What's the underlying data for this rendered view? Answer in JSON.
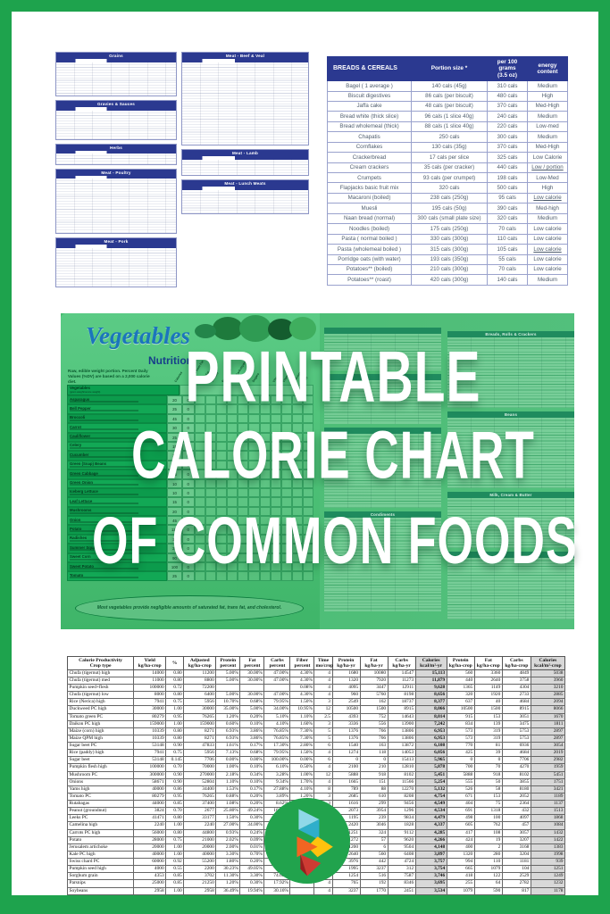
{
  "poster": {
    "frame_color": "#1EA34D"
  },
  "mini_tables": {
    "left": [
      {
        "title": "Grains",
        "rows": 13
      },
      {
        "title": "Gravies & Sauces",
        "rows": 11
      },
      {
        "title": "Herbs",
        "rows": 4
      },
      {
        "title": "Meat - Poultry",
        "rows": 21
      },
      {
        "title": "Meat - Pork",
        "rows": 15
      }
    ],
    "right": [
      {
        "title": "Meat - Beef & Veal",
        "rows": 32
      },
      {
        "title": "Meat - Lamb",
        "rows": 6
      },
      {
        "title": "Meat - Lunch Meats",
        "rows": 9
      }
    ]
  },
  "breads_table": {
    "title": "BREADS & CEREALS",
    "col_portion": "Portion size *",
    "col_per100_line1": "per 100 grams",
    "col_per100_line2": "(3.5 oz)",
    "col_energy": "energy content",
    "rows": [
      {
        "food": "Bagel ( 1 average )",
        "portion": "140 cals (45g)",
        "per100": "310 cals",
        "energy": "Medium",
        "underline": false
      },
      {
        "food": "Biscuit digestives",
        "portion": "86 cals (per biscuit)",
        "per100": "480 cals",
        "energy": "High",
        "underline": false
      },
      {
        "food": "Jaffa cake",
        "portion": "48 cals (per biscuit)",
        "per100": "370 cals",
        "energy": "Med-High",
        "underline": false
      },
      {
        "food": "Bread white (thick slice)",
        "portion": "96 cals (1 slice 40g)",
        "per100": "240 cals",
        "energy": "Medium",
        "underline": false
      },
      {
        "food": "Bread wholemeal (thick)",
        "portion": "88 cals (1 slice 40g)",
        "per100": "220 cals",
        "energy": "Low-med",
        "underline": false
      },
      {
        "food": "Chapatis",
        "portion": "250 cals",
        "per100": "300 cals",
        "energy": "Medium",
        "underline": false
      },
      {
        "food": "Cornflakes",
        "portion": "130 cals (35g)",
        "per100": "370 cals",
        "energy": "Med-High",
        "underline": false
      },
      {
        "food": "Crackerbread",
        "portion": "17 cals per slice",
        "per100": "325 cals",
        "energy": "Low Calorie",
        "underline": false
      },
      {
        "food": "Cream crackers",
        "portion": "35 cals (per cracker)",
        "per100": "440 cals",
        "energy": "Low / portion",
        "underline": true
      },
      {
        "food": "Crumpets",
        "portion": "93 cals (per crumpet)",
        "per100": "198 cals",
        "energy": "Low-Med",
        "underline": false
      },
      {
        "food": "Flapjacks basic fruit mix",
        "portion": "320 cals",
        "per100": "500 cals",
        "energy": "High",
        "underline": false
      },
      {
        "food": "Macaroni (boiled)",
        "portion": "238 cals (250g)",
        "per100": "95 cals",
        "energy": "Low calorie",
        "underline": true
      },
      {
        "food": "Muesli",
        "portion": "195 cals (50g)",
        "per100": "390 cals",
        "energy": "Med-high",
        "underline": false
      },
      {
        "food": "Naan bread (normal)",
        "portion": "300 cals (small plate size)",
        "per100": "320 cals",
        "energy": "Medium",
        "underline": false
      },
      {
        "food": "Noodles (boiled)",
        "portion": "175 cals (250g)",
        "per100": "70 cals",
        "energy": "Low calorie",
        "underline": false
      },
      {
        "food": "Pasta ( normal boiled )",
        "portion": "330 cals (300g)",
        "per100": "110 cals",
        "energy": "Low calorie",
        "underline": false
      },
      {
        "food": "Pasta (wholemeal boiled )",
        "portion": "315 cals (300g)",
        "per100": "105 cals",
        "energy": "Low calorie",
        "underline": true
      },
      {
        "food": "Porridge oats (with water)",
        "portion": "193 cals (350g)",
        "per100": "55 cals",
        "energy": "Low calorie",
        "underline": false
      },
      {
        "food": "Potatoes** (boiled)",
        "portion": "210 cals (300g)",
        "per100": "70 cals",
        "energy": "Low calorie",
        "underline": false
      },
      {
        "food": "Potatoes** (roast)",
        "portion": "420 cals (300g)",
        "per100": "140 cals",
        "energy": "Medium",
        "underline": false
      }
    ]
  },
  "hero": {
    "overlay_lines": [
      "PRINTABLE",
      "CALORIE CHART",
      "OF COMMON FOODS"
    ],
    "veg_panel": {
      "title": "Vegetables",
      "subtitle": "Nutrition",
      "note": "Raw, edible weight portion. Percent Daily Values (%DV) are based on a 2,000 calorie diet.",
      "table_header": "Vegetables",
      "table_header_sub": "(gram weight/ounce weight)",
      "columns": [
        "Calories",
        "Calories from Fat",
        "Total Fat",
        "Sodium",
        "Potassium",
        "Total Carbohydrate",
        "Dietary Fiber",
        "Sugars",
        "Protein",
        "Vitamin A",
        "Vitamin C",
        "Calcium",
        "Iron"
      ],
      "rows": [
        {
          "name": "Asparagus",
          "calories": "20",
          "calories_from_fat": "0"
        },
        {
          "name": "Bell Pepper",
          "calories": "25",
          "calories_from_fat": "0"
        },
        {
          "name": "Broccoli",
          "calories": "45",
          "calories_from_fat": "0"
        },
        {
          "name": "Carrot",
          "calories": "30",
          "calories_from_fat": "0"
        },
        {
          "name": "Cauliflower",
          "calories": "25",
          "calories_from_fat": "0"
        },
        {
          "name": "Celery",
          "calories": "15",
          "calories_from_fat": "0"
        },
        {
          "name": "Cucumber",
          "calories": "10",
          "calories_from_fat": "0"
        },
        {
          "name": "Green (Snap) Beans",
          "calories": "20",
          "calories_from_fat": "0"
        },
        {
          "name": "Green Cabbage",
          "calories": "25",
          "calories_from_fat": "0"
        },
        {
          "name": "Green Onion",
          "calories": "10",
          "calories_from_fat": "0"
        },
        {
          "name": "Iceberg Lettuce",
          "calories": "10",
          "calories_from_fat": "0"
        },
        {
          "name": "Leaf Lettuce",
          "calories": "15",
          "calories_from_fat": "0"
        },
        {
          "name": "Mushrooms",
          "calories": "20",
          "calories_from_fat": "0"
        },
        {
          "name": "Onion",
          "calories": "45",
          "calories_from_fat": "0"
        },
        {
          "name": "Potato",
          "calories": "110",
          "calories_from_fat": "0"
        },
        {
          "name": "Radishes",
          "calories": "10",
          "calories_from_fat": "0"
        },
        {
          "name": "Summer Squash",
          "calories": "20",
          "calories_from_fat": "0"
        },
        {
          "name": "Sweet Corn",
          "calories": "90",
          "calories_from_fat": "20"
        },
        {
          "name": "Sweet Potato",
          "calories": "100",
          "calories_from_fat": "0"
        },
        {
          "name": "Tomato",
          "calories": "25",
          "calories_from_fat": "0"
        }
      ],
      "footnote": "Most vegetables provide negligible amounts of saturated fat, trans fat, and cholesterol."
    },
    "collage": {
      "left_titles": [
        "",
        "",
        "",
        "Condiments"
      ],
      "right_titles": [
        "Breads, Rolls & Crackers",
        "Beans",
        "Milk, Cream & Butter",
        ""
      ]
    }
  },
  "crop_table": {
    "header_line1": [
      "Calorie Productivity",
      "Yield",
      "%",
      "Adjusted",
      "Protein",
      "Fat",
      "Carbs",
      "Fiber",
      "Time",
      "Protein",
      "Fat",
      "Carbs",
      "Calories",
      "Protein",
      "Fat",
      "Carbs",
      "Calories"
    ],
    "header_line2": [
      "Crop type",
      "kg/ha-crop",
      "",
      "kg/ha-crop",
      "percent",
      "percent",
      "percent",
      "percent",
      "mo/crop",
      "kg/ha-yr",
      "kg/ha-yr",
      "kg/ha-yr",
      "kcal/m²-yr",
      "kg/ha-crop",
      "kg/ha-crop",
      "kg/ha-crop",
      "kcal/m²-crop"
    ],
    "rows": [
      [
        "Chufa (tigernut) high",
        "14000",
        "0.80",
        "11200",
        "5.00%",
        "30.00%",
        "47.00%",
        "4.30%",
        "4",
        "1680",
        "10080",
        "14547",
        "15,113",
        "560",
        "3360",
        "4849",
        "5038"
      ],
      [
        "Chufa (tigernut) med",
        "11000",
        "0.80",
        "8800",
        "5.00%",
        "30.00%",
        "47.00%",
        "4.30%",
        "4",
        "1320",
        "7920",
        "11273",
        "11,879",
        "440",
        "2640",
        "3758",
        "3960"
      ],
      [
        "Pumpkin seed+flesh",
        "100000",
        "0.72",
        "72200",
        "",
        "",
        "",
        "0.08%",
        "4",
        "4095",
        "3447",
        "12911",
        "9,628",
        "1365",
        "1149",
        "4304",
        "3210"
      ],
      [
        "Chufa (tigernut) low",
        "8000",
        "0.80",
        "6400",
        "5.00%",
        "30.00%",
        "47.00%",
        "4.30%",
        "4",
        "960",
        "5760",
        "8198",
        "8,656",
        "320",
        "1920",
        "2733",
        "2885"
      ],
      [
        "Rice (Nerica) high",
        "7941",
        "0.75",
        "5956",
        "10.70%",
        "0.68%",
        "79.95%",
        "1.50%",
        "3",
        "2549",
        "162",
        "18737",
        "8,377",
        "637",
        "40",
        "4684",
        "2094"
      ],
      [
        "Duckweed PC high",
        "30000",
        "1.00",
        "30000",
        "35.00%",
        "5.00%",
        "34.00%",
        "10.95%",
        "12",
        "10500",
        "1500",
        "8915",
        "8,066",
        "10500",
        "1500",
        "8915",
        "8066"
      ],
      [
        "Tomato green PC",
        "80279",
        "0.95",
        "76265",
        "1.20%",
        "0.20%",
        "5.10%",
        "1.10%",
        "2.5",
        "4393",
        "752",
        "14643",
        "8,014",
        "915",
        "153",
        "3051",
        "1670"
      ],
      [
        "Daikon PC high",
        "159000",
        "1.00",
        "159000",
        "0.60%",
        "0.10%",
        "4.10%",
        "1.60%",
        "3",
        "3336",
        "556",
        "13900",
        "7,242",
        "834",
        "139",
        "3475",
        "1811"
      ],
      [
        "Maize (corn) high",
        "10339",
        "0.80",
        "8271",
        "6.93%",
        "3.86%",
        "76.85%",
        "7.30%",
        "5",
        "1376",
        "766",
        "13806",
        "6,953",
        "573",
        "319",
        "5753",
        "2897"
      ],
      [
        "Maize QPM high",
        "10339",
        "0.80",
        "8271",
        "6.93%",
        "3.86%",
        "76.85%",
        "7.30%",
        "5",
        "1376",
        "766",
        "13806",
        "6,953",
        "573",
        "319",
        "5753",
        "2897"
      ],
      [
        "Sugar beet PC",
        "53148",
        "0.90",
        "47833",
        "1.61%",
        "0.17%",
        "17.30%",
        "2.80%",
        "6",
        "1540",
        "163",
        "13872",
        "6,108",
        "770",
        "81",
        "6936",
        "3054"
      ],
      [
        "Rice (paddy) high",
        "7941",
        "0.75",
        "5956",
        "7.13%",
        "0.68%",
        "79.95%",
        "1.50%",
        "4",
        "1274",
        "118",
        "14053",
        "6,056",
        "425",
        "39",
        "4684",
        "2019"
      ],
      [
        "Sugar beet",
        "53148",
        "0.145",
        "7706",
        "0.00%",
        "0.00%",
        "100.00%",
        "0.00%",
        "6",
        "0",
        "0",
        "15413",
        "5,965",
        "0",
        "0",
        "7706",
        "2982"
      ],
      [
        "Pumpkin flesh high",
        "100000",
        "0.70",
        "70000",
        "1.00%",
        "0.10%",
        "6.10%",
        "0.50%",
        "4",
        "2100",
        "210",
        "12810",
        "5,878",
        "700",
        "70",
        "4270",
        "1959"
      ],
      [
        "Mushroom PC",
        "300000",
        "0.90",
        "270000",
        "2.18%",
        "0.34%",
        "3.28%",
        "1.00%",
        "12",
        "5888",
        "918",
        "8102",
        "5,451",
        "5888",
        "918",
        "8102",
        "5451"
      ],
      [
        "Onions",
        "58671",
        "0.90",
        "52804",
        "1.10%",
        "0.10%",
        "9.34%",
        "1.70%",
        "4",
        "1665",
        "151",
        "11566",
        "5,254",
        "555",
        "50",
        "3855",
        "1751"
      ],
      [
        "Yams high",
        "40000",
        "0.86",
        "34400",
        "1.53%",
        "0.17%",
        "27.88%",
        "4.10%",
        "8",
        "789",
        "88",
        "12270",
        "5,132",
        "526",
        "58",
        "8180",
        "3421"
      ],
      [
        "Tomato PC",
        "80279",
        "0.95",
        "76265",
        "0.88%",
        "0.20%",
        "3.89%",
        "1.20%",
        "3",
        "2685",
        "610",
        "8208",
        "4,754",
        "671",
        "153",
        "2052",
        "1189"
      ],
      [
        "Rutabagas",
        "44000",
        "0.85",
        "37400",
        "1.08%",
        "0.20%",
        "8.62%",
        "2.30%",
        "3",
        "1616",
        "299",
        "9456",
        "4,549",
        "404",
        "75",
        "2364",
        "1137"
      ],
      [
        "Peanut (groundnut)",
        "3824",
        "0.70",
        "2677",
        "25.80%",
        "49.24%",
        "16.13%",
        "",
        "4",
        "2073",
        "3954",
        "1296",
        "4,534",
        "691",
        "1318",
        "432",
        "1513"
      ],
      [
        "Leeks PC",
        "41471",
        "0.80",
        "33177",
        "1.50%",
        "0.30%",
        "14.15%",
        "",
        "5",
        "1195",
        "239",
        "9834",
        "4,479",
        "498",
        "100",
        "4097",
        "1868"
      ],
      [
        "Camelina high",
        "2240",
        "1.00",
        "2240",
        "27.00%",
        "34.00%",
        "30.00%",
        "",
        "3",
        "2420",
        "3046",
        "1828",
        "4,337",
        "605",
        "762",
        "457",
        "1084"
      ],
      [
        "Carrots PC high",
        "56000",
        "0.80",
        "44800",
        "0.93%",
        "0.24%",
        "9.53%",
        "",
        "4",
        "1251",
        "324",
        "9112",
        "4,285",
        "417",
        "108",
        "3057",
        "1432"
      ],
      [
        "Potato",
        "28000",
        "0.75",
        "21000",
        "2.02%",
        "0.09%",
        "15.27%",
        "",
        "4",
        "1272",
        "57",
        "9620",
        "4,266",
        "424",
        "19",
        "3207",
        "1422"
      ],
      [
        "Jerusalem artichoke",
        "20000",
        "1.00",
        "20000",
        "2.00%",
        "0.01%",
        "15.84%",
        "",
        "4",
        "1200",
        "6",
        "9504",
        "4,148",
        "400",
        "2",
        "3168",
        "1383"
      ],
      [
        "Kale PC high",
        "40000",
        "1.00",
        "40000",
        "3.30%",
        "0.70%",
        "8.01%",
        "",
        "6",
        "2640",
        "560",
        "6408",
        "3,897",
        "1320",
        "280",
        "3204",
        "1998"
      ],
      [
        "Swiss chard PC",
        "60000",
        "0.92",
        "55200",
        "1.80%",
        "0.20%",
        "2.14%",
        "",
        "3",
        "3976",
        "442",
        "4724",
        "3,757",
        "994",
        "110",
        "1181",
        "939"
      ],
      [
        "Pumpkin seed high",
        "4000",
        "0.55",
        "2200",
        "30.23%",
        "49.05%",
        "4.73%",
        "",
        "4",
        "1995",
        "3237",
        "312",
        "3,754",
        "665",
        "1079",
        "104",
        "1251"
      ],
      [
        "Sorghum grain",
        "4353",
        "0.85",
        "3702",
        "11.30%",
        "3.30%",
        "74.63%",
        "",
        "4",
        "1254",
        "516",
        "7587",
        "3,746",
        "418",
        "122",
        "2529",
        "1249"
      ],
      [
        "Parsnips",
        "25000",
        "0.85",
        "21250",
        "1.20%",
        "0.30%",
        "17.92%",
        "",
        "4",
        "765",
        "192",
        "8346",
        "3,695",
        "255",
        "64",
        "2782",
        "1232"
      ],
      [
        "Soybeans",
        "2958",
        "1.00",
        "2958",
        "36.49%",
        "19.94%",
        "30.16%",
        "",
        "4",
        "3237",
        "1770",
        "2451",
        "3,534",
        "1079",
        "590",
        "817",
        "1178"
      ]
    ]
  },
  "logo": {
    "colors": {
      "circle": "#21A34D",
      "cyan": "#8FD8E8",
      "teal": "#2FAECB",
      "yellow": "#FFC20E",
      "orange": "#F26522",
      "red": "#CE3B33",
      "dark_red": "#9E1B1E"
    }
  }
}
